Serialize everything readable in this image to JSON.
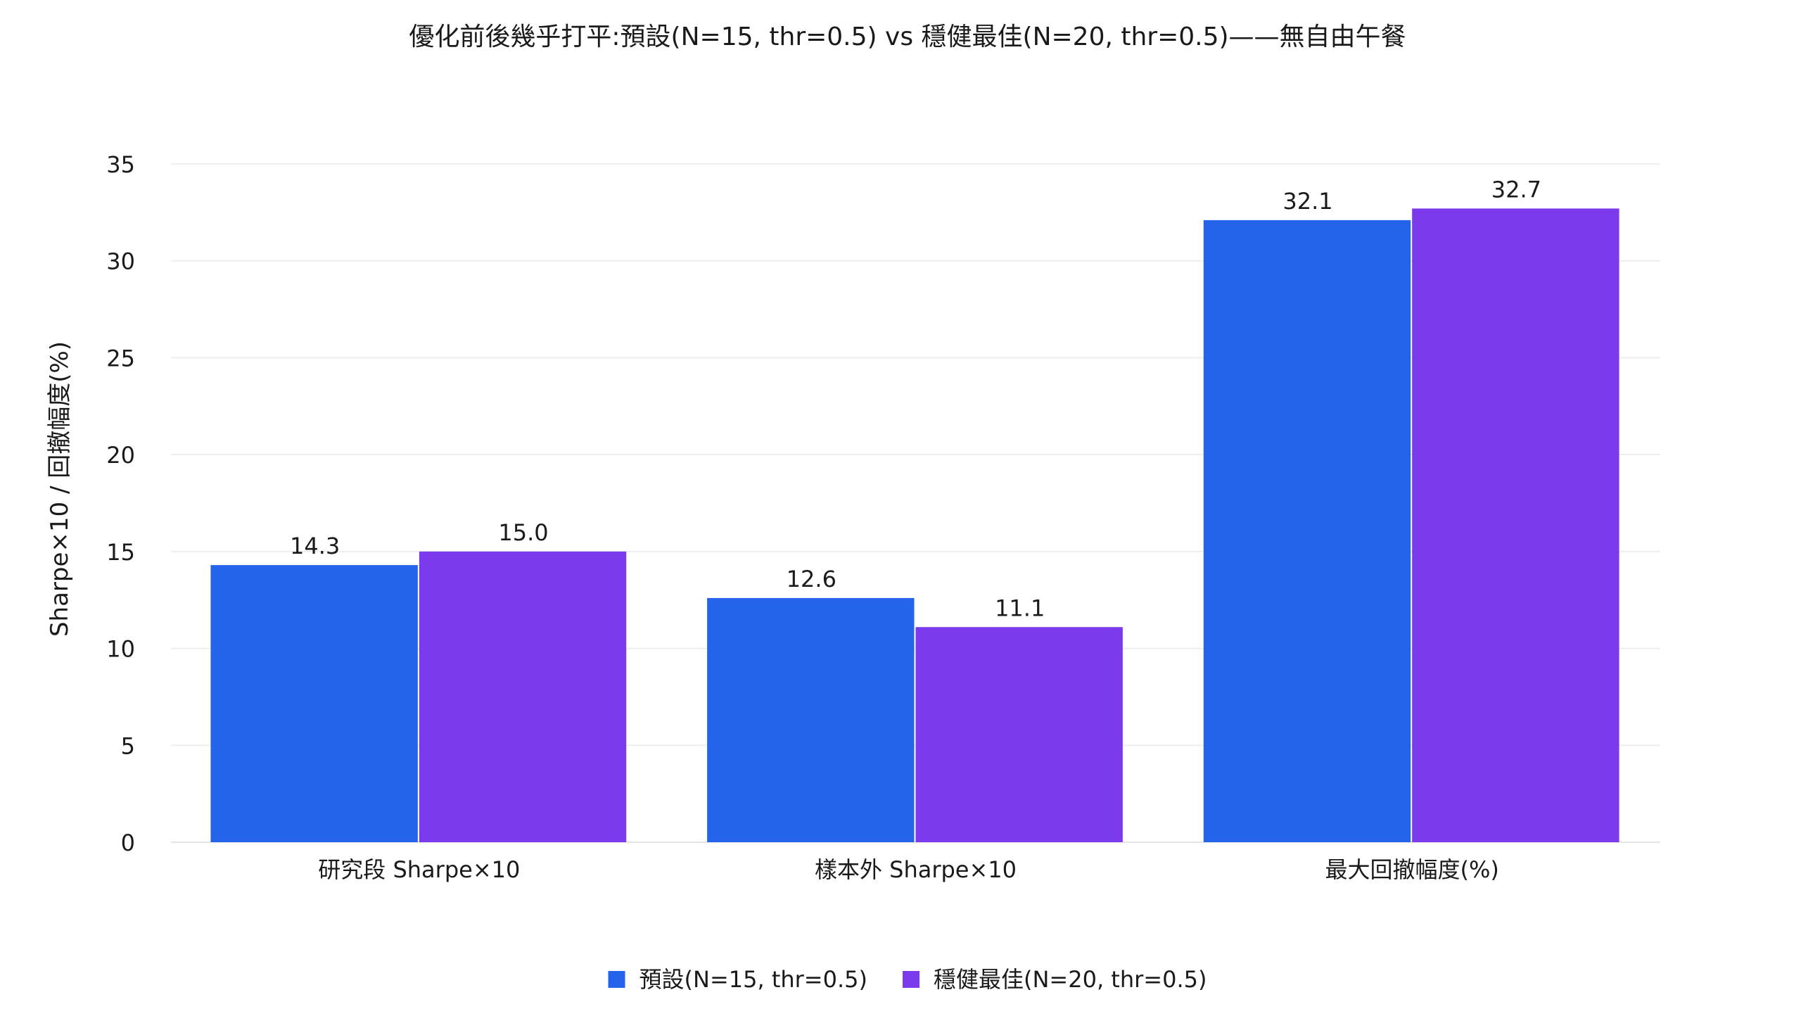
{
  "chart_data": {
    "type": "bar",
    "title": "優化前後幾乎打平:預設(N=15, thr=0.5) vs 穩健最佳(N=20, thr=0.5)——無自由午餐",
    "xlabel": "",
    "ylabel": "Sharpe×10 / 回撤幅度(%)",
    "categories": [
      "研究段 Sharpe×10",
      "樣本外 Sharpe×10",
      "最大回撤幅度(%)"
    ],
    "series": [
      {
        "name": "預設(N=15, thr=0.5)",
        "color": "#2563eb",
        "values": [
          14.3,
          12.6,
          32.1
        ],
        "labels": [
          "14.3",
          "12.6",
          "32.1"
        ]
      },
      {
        "name": "穩健最佳(N=20, thr=0.5)",
        "color": "#7c3aed",
        "values": [
          15.0,
          11.1,
          32.7
        ],
        "labels": [
          "15.0",
          "11.1",
          "32.7"
        ]
      }
    ],
    "ylim": [
      0,
      35
    ],
    "yticks": [
      0,
      5,
      10,
      15,
      20,
      25,
      30,
      35
    ],
    "grid": true,
    "legend_position": "bottom-center",
    "gridline_color": "#eceef2",
    "axis_line_color": "#e3e5ea"
  }
}
